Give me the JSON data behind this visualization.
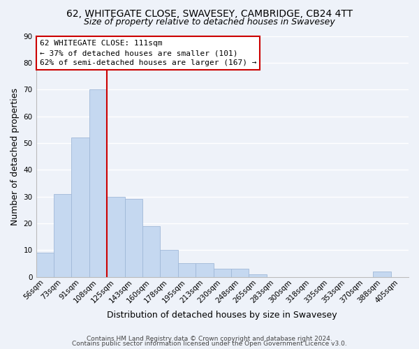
{
  "title": "62, WHITEGATE CLOSE, SWAVESEY, CAMBRIDGE, CB24 4TT",
  "subtitle": "Size of property relative to detached houses in Swavesey",
  "xlabel": "Distribution of detached houses by size in Swavesey",
  "ylabel": "Number of detached properties",
  "bar_labels": [
    "56sqm",
    "73sqm",
    "91sqm",
    "108sqm",
    "125sqm",
    "143sqm",
    "160sqm",
    "178sqm",
    "195sqm",
    "213sqm",
    "230sqm",
    "248sqm",
    "265sqm",
    "283sqm",
    "300sqm",
    "318sqm",
    "335sqm",
    "353sqm",
    "370sqm",
    "388sqm",
    "405sqm"
  ],
  "bar_values": [
    9,
    31,
    52,
    70,
    30,
    29,
    19,
    10,
    5,
    5,
    3,
    3,
    1,
    0,
    0,
    0,
    0,
    0,
    0,
    2,
    0
  ],
  "bar_color": "#c5d8f0",
  "bar_edge_color": "#a0b8d8",
  "vline_x": 3.5,
  "vline_color": "#cc0000",
  "ylim": [
    0,
    90
  ],
  "yticks": [
    0,
    10,
    20,
    30,
    40,
    50,
    60,
    70,
    80,
    90
  ],
  "annotation_box_text": "62 WHITEGATE CLOSE: 111sqm\n← 37% of detached houses are smaller (101)\n62% of semi-detached houses are larger (167) →",
  "footer_line1": "Contains HM Land Registry data © Crown copyright and database right 2024.",
  "footer_line2": "Contains public sector information licensed under the Open Government Licence v3.0.",
  "background_color": "#eef2f9",
  "grid_color": "#ffffff",
  "title_fontsize": 10,
  "subtitle_fontsize": 9,
  "axis_label_fontsize": 9,
  "tick_fontsize": 7.5,
  "footer_fontsize": 6.5,
  "annotation_fontsize": 8
}
